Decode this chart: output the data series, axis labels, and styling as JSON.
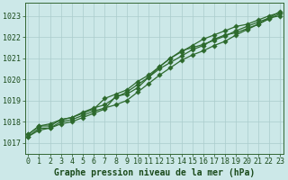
{
  "title": "Graphe pression niveau de la mer (hPa)",
  "x_hours": [
    0,
    1,
    2,
    3,
    4,
    5,
    6,
    7,
    8,
    9,
    10,
    11,
    12,
    13,
    14,
    15,
    16,
    17,
    18,
    19,
    20,
    21,
    22,
    23
  ],
  "series": [
    [
      1017.3,
      1017.7,
      1017.7,
      1017.9,
      1018.0,
      1018.2,
      1018.4,
      1018.6,
      1019.2,
      1019.3,
      1019.6,
      1020.1,
      1020.5,
      1020.8,
      1021.1,
      1021.4,
      1021.6,
      1021.9,
      1022.1,
      1022.2,
      1022.4,
      1022.6,
      1022.9,
      1023.0
    ],
    [
      1017.4,
      1017.8,
      1017.8,
      1018.1,
      1018.2,
      1018.4,
      1018.6,
      1019.1,
      1019.3,
      1019.5,
      1019.9,
      1020.2,
      1020.6,
      1021.0,
      1021.3,
      1021.6,
      1021.9,
      1022.1,
      1022.3,
      1022.5,
      1022.6,
      1022.8,
      1023.0,
      1023.15
    ],
    [
      1017.4,
      1017.8,
      1017.9,
      1018.1,
      1018.2,
      1018.45,
      1018.65,
      1018.8,
      1019.15,
      1019.4,
      1019.75,
      1020.1,
      1020.6,
      1021.0,
      1021.35,
      1021.5,
      1021.65,
      1021.85,
      1022.05,
      1022.3,
      1022.5,
      1022.7,
      1022.9,
      1023.2
    ],
    [
      1017.3,
      1017.6,
      1017.7,
      1018.0,
      1018.1,
      1018.3,
      1018.5,
      1018.65,
      1018.8,
      1019.0,
      1019.4,
      1019.8,
      1020.2,
      1020.55,
      1020.9,
      1021.15,
      1021.35,
      1021.6,
      1021.8,
      1022.1,
      1022.35,
      1022.6,
      1022.85,
      1023.1
    ]
  ],
  "line_color": "#2d6a2d",
  "marker_color": "#2d6a2d",
  "bg_color": "#cce8e8",
  "grid_color": "#aacccc",
  "plot_bg_color": "#cce8e8",
  "axis_label_color": "#1a4a1a",
  "spine_color": "#336633",
  "ylim": [
    1016.5,
    1023.6
  ],
  "yticks": [
    1017,
    1018,
    1019,
    1020,
    1021,
    1022,
    1023
  ],
  "xticks": [
    0,
    1,
    2,
    3,
    4,
    5,
    6,
    7,
    8,
    9,
    10,
    11,
    12,
    13,
    14,
    15,
    16,
    17,
    18,
    19,
    20,
    21,
    22,
    23
  ],
  "title_fontsize": 7.0,
  "tick_fontsize": 6.0,
  "linewidth": 0.9,
  "markersize": 2.8
}
